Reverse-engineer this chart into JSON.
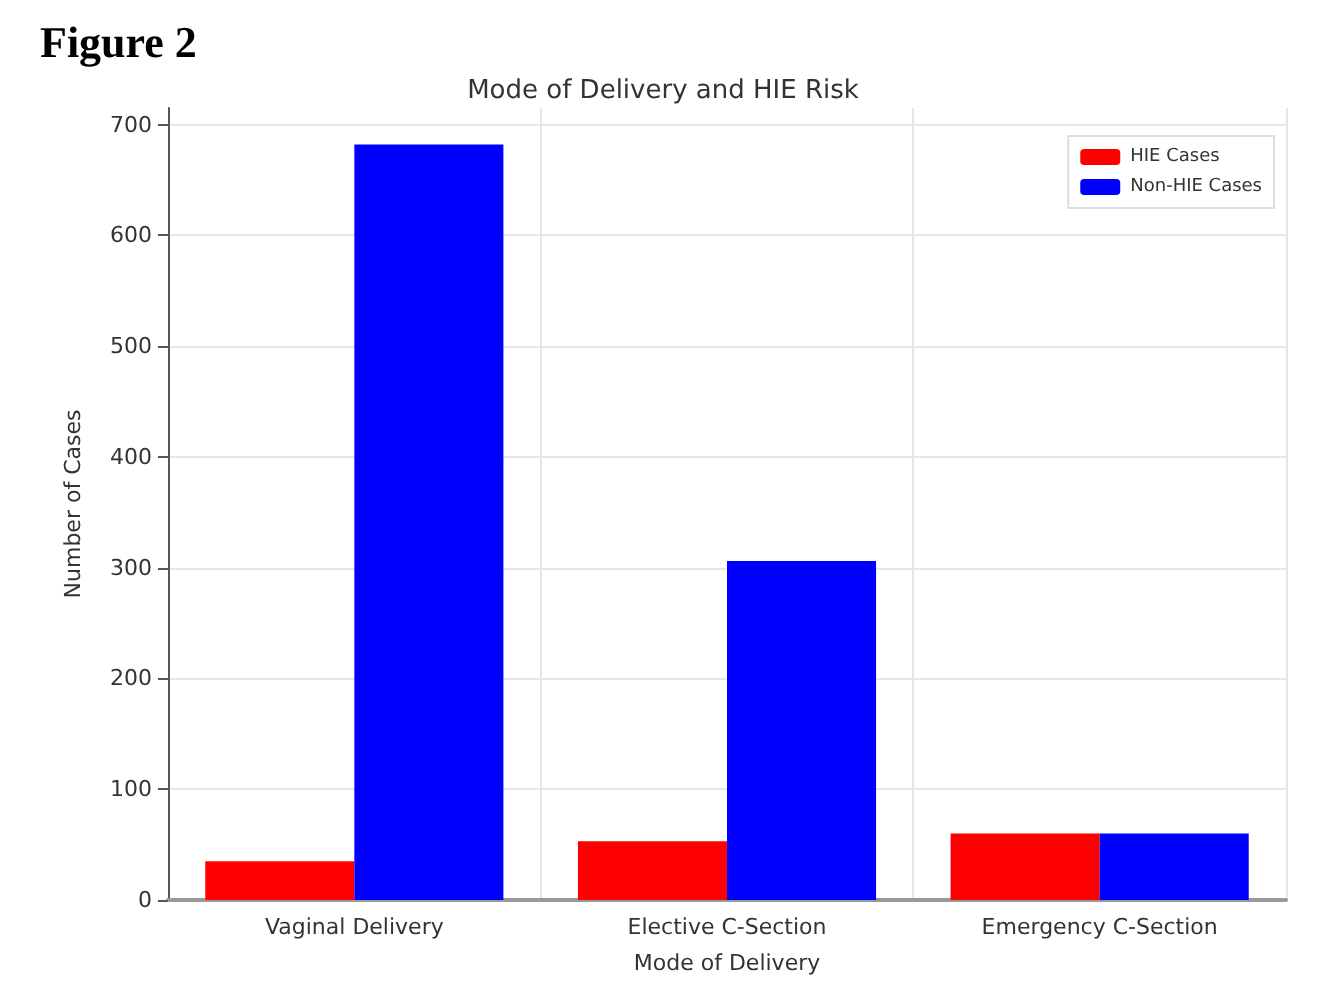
{
  "chart_data": {
    "type": "bar",
    "title": "Mode of Delivery and HIE Risk",
    "xlabel": "Mode of Delivery",
    "ylabel": "Number of Cases",
    "annotations": [
      "Figure 2"
    ],
    "categories": [
      "Vaginal Delivery",
      "Elective C-Section",
      "Emergency C-Section"
    ],
    "series": [
      {
        "name": "HIE Cases",
        "color": "#ff0000",
        "values": [
          35,
          53,
          60
        ]
      },
      {
        "name": "Non-HIE Cases",
        "color": "#0000ff",
        "values": [
          682,
          306,
          60
        ]
      }
    ],
    "ylim": [
      0,
      715
    ],
    "yticks": [
      0,
      100,
      200,
      300,
      400,
      500,
      600,
      700
    ],
    "grid": true,
    "legend": "top right"
  }
}
